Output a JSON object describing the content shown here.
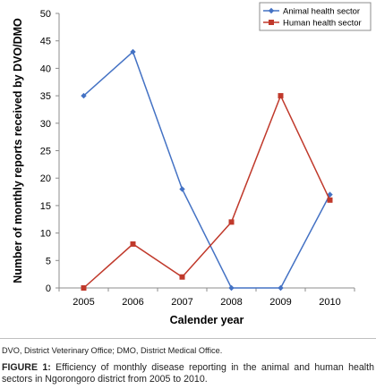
{
  "chart_data": {
    "type": "line",
    "x": [
      2005,
      2006,
      2007,
      2008,
      2009,
      2010
    ],
    "categories": [
      "2005",
      "2006",
      "2007",
      "2008",
      "2009",
      "2010"
    ],
    "series": [
      {
        "name": "Animal health sector",
        "values": [
          35,
          43,
          18,
          0,
          0,
          17
        ],
        "color": "#4472c4",
        "marker": "diamond"
      },
      {
        "name": "Human health sector",
        "values": [
          0,
          8,
          2,
          12,
          35,
          16
        ],
        "color": "#c0392b",
        "marker": "square"
      }
    ],
    "xlabel": "Calender year",
    "ylabel": "Number of monthly reports received by DVO/DMO",
    "ylim": [
      0,
      50
    ],
    "yticks": [
      0,
      5,
      10,
      15,
      20,
      25,
      30,
      35,
      40,
      45,
      50
    ],
    "grid": false,
    "legend": "top-right"
  },
  "footnote": "DVO, District Veterinary Office; DMO, District Medical Office.",
  "caption": {
    "label": "FIGURE 1:",
    "text": "Efficiency of monthly disease reporting in the animal and human health sectors in Ngorongoro district from 2005 to 2010."
  }
}
